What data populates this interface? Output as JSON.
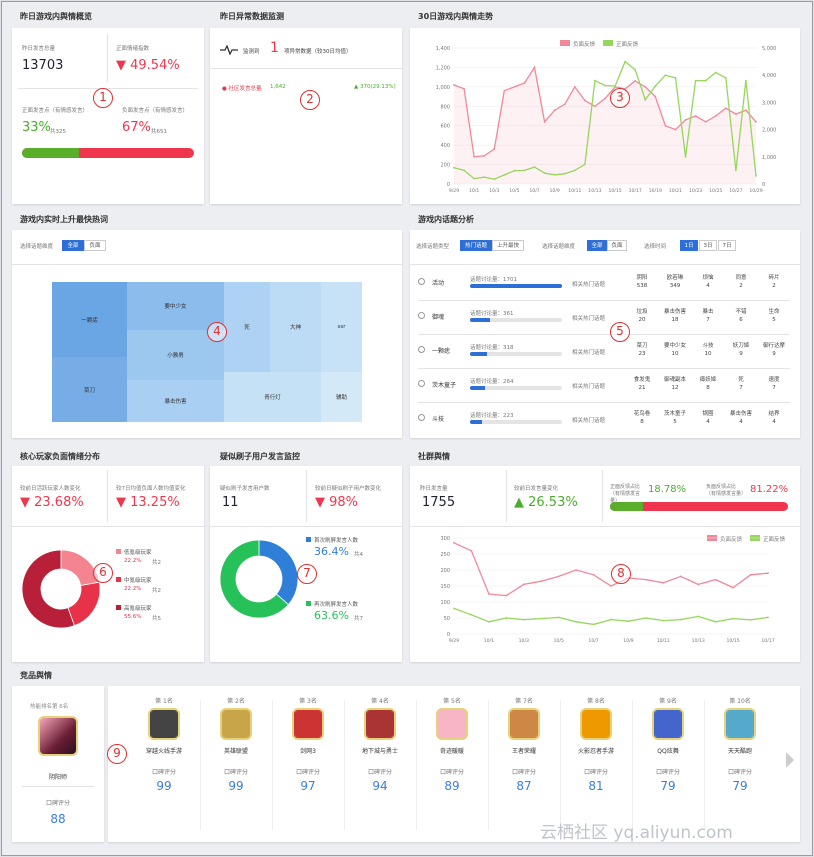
{
  "sections": {
    "overview": "昨日游戏内舆情概览",
    "anomaly": "昨日异常数据监测",
    "trend": "30日游戏内舆情走势",
    "hot": "游戏内实时上升最快热词",
    "topics": "游戏内话题分析",
    "core": "核心玩家负面情绪分布",
    "brush": "疑似刷子用户发言监控",
    "community": "社群舆情",
    "competitor": "竞品舆情"
  },
  "overview": {
    "total_label": "昨日发言总量",
    "total": "13703",
    "sentiment_label": "正面情绪指数",
    "sentiment": "▼ 49.54%",
    "pos_label": "正面发言点（有情感发言）",
    "pos_pct": "33%",
    "pos_count": "共325",
    "neg_label": "负面发言点（有情感发言）",
    "neg_pct": "67%",
    "neg_count": "共651",
    "pos_share": 0.33
  },
  "anomaly": {
    "detect_prefix": "监测到",
    "detect_count": "1",
    "detect_suffix": "项异常数据（较30日均值）",
    "item_label": "● 社区发言总量",
    "item_value": "1,642",
    "item_change": "▲ 370(29.13%)"
  },
  "trend": {
    "legend_neg": "负面反馈",
    "legend_pos": "正面反馈",
    "colors": {
      "neg": "#f1889a",
      "pos": "#96d65c"
    }
  },
  "chart_data": [
    {
      "type": "line",
      "title": "30日游戏内舆情走势",
      "x": [
        "9/29",
        "9/30",
        "10/1",
        "10/2",
        "10/3",
        "10/4",
        "10/5",
        "10/6",
        "10/7",
        "10/8",
        "10/9",
        "10/10",
        "10/11",
        "10/12",
        "10/13",
        "10/14",
        "10/15",
        "10/16",
        "10/17",
        "10/18",
        "10/19",
        "10/20",
        "10/21",
        "10/22",
        "10/23",
        "10/24",
        "10/25",
        "10/26",
        "10/27",
        "10/28",
        "10/29"
      ],
      "xticks": [
        "9/29",
        "10/1",
        "10/3",
        "10/5",
        "10/7",
        "10/9",
        "10/11",
        "10/13",
        "10/15",
        "10/17",
        "10/19",
        "10/21",
        "10/23",
        "10/25",
        "10/27",
        "10/29"
      ],
      "ylim_left": [
        0,
        1400
      ],
      "yticks_left": [
        "0",
        "200",
        "400",
        "600",
        "800",
        "1,000",
        "1,200",
        "1,400"
      ],
      "ylim_right": [
        0,
        5000
      ],
      "yticks_right": [
        "0",
        "1,000",
        "2,000",
        "3,000",
        "4,000",
        "5,000"
      ],
      "series": [
        {
          "name": "负面反馈",
          "axis": "left",
          "values": [
            1020,
            980,
            280,
            290,
            360,
            960,
            1000,
            1040,
            1200,
            640,
            760,
            820,
            1000,
            860,
            800,
            880,
            1000,
            980,
            1060,
            1000,
            900,
            600,
            560,
            660,
            700,
            640,
            700,
            780,
            720,
            760,
            640
          ]
        },
        {
          "name": "正面反馈",
          "axis": "right",
          "values": [
            600,
            500,
            200,
            250,
            180,
            330,
            490,
            500,
            620,
            400,
            340,
            380,
            500,
            720,
            3800,
            3620,
            3600,
            4500,
            4200,
            3100,
            3600,
            4000,
            3900,
            1000,
            3800,
            3800,
            4100,
            3900,
            500,
            3800,
            300
          ]
        }
      ]
    },
    {
      "type": "line",
      "title": "社群舆情",
      "x": [
        "9/29",
        "9/30",
        "10/1",
        "10/2",
        "10/3",
        "10/4",
        "10/5",
        "10/6",
        "10/7",
        "10/8",
        "10/9",
        "10/10",
        "10/11",
        "10/12",
        "10/13",
        "10/14",
        "10/15",
        "10/16",
        "10/17"
      ],
      "xticks": [
        "9/29",
        "10/1",
        "10/3",
        "10/5",
        "10/7",
        "10/9",
        "10/11",
        "10/13",
        "10/15",
        "10/17"
      ],
      "ylim": [
        0,
        300
      ],
      "yticks": [
        "0",
        "50",
        "100",
        "150",
        "200",
        "250",
        "300"
      ],
      "series": [
        {
          "name": "负面反馈",
          "values": [
            285,
            260,
            125,
            120,
            155,
            165,
            180,
            200,
            185,
            150,
            175,
            170,
            160,
            180,
            155,
            170,
            145,
            185,
            190
          ]
        },
        {
          "name": "正面反馈",
          "values": [
            80,
            60,
            38,
            50,
            45,
            48,
            52,
            38,
            30,
            45,
            40,
            50,
            42,
            45,
            55,
            38,
            48,
            44,
            52
          ]
        }
      ]
    }
  ],
  "hot": {
    "filter_label": "选择话题维度",
    "btn_all": "全部",
    "btn_neg": "负面",
    "words": [
      "一颗痣",
      "菜刀",
      "要中少女",
      "小雅男",
      "暴击伤害",
      "死",
      "青行灯",
      "大神",
      "ssr",
      "辅助"
    ]
  },
  "topics": {
    "type_label": "选择话题类型",
    "btn_hot": "热门话题",
    "btn_rise": "上升最快",
    "dim_label": "选择话题维度",
    "btn_all": "全部",
    "btn_neg": "负面",
    "time_label": "选择时间",
    "btn_1d": "1日",
    "btn_3d": "3日",
    "btn_7d": "7日",
    "related_label": "相关热门话题",
    "rows": [
      {
        "name": "活动",
        "count": "话题讨论量：1701",
        "fill": 1.0,
        "items": [
          {
            "w": "阴阳",
            "n": "538"
          },
          {
            "w": "欧若琳",
            "n": "349"
          },
          {
            "w": "烦恼",
            "n": "4"
          },
          {
            "w": "同意",
            "n": "2"
          },
          {
            "w": "碎片",
            "n": "2"
          }
        ]
      },
      {
        "name": "御魂",
        "count": "话题讨论量：361",
        "fill": 0.22,
        "items": [
          {
            "w": "垃圾",
            "n": "20"
          },
          {
            "w": "暴击伤害",
            "n": "18"
          },
          {
            "w": "暴击",
            "n": "7"
          },
          {
            "w": "不错",
            "n": "6"
          },
          {
            "w": "生命",
            "n": "5"
          }
        ]
      },
      {
        "name": "一颗痣",
        "count": "话题讨论量：318",
        "fill": 0.19,
        "items": [
          {
            "w": "菜刀",
            "n": "23"
          },
          {
            "w": "要中少女",
            "n": "10"
          },
          {
            "w": "斗技",
            "n": "10"
          },
          {
            "w": "妖刀姬",
            "n": "9"
          },
          {
            "w": "御行达摩",
            "n": "9"
          }
        ]
      },
      {
        "name": "茨木童子",
        "count": "话题讨论量：264",
        "fill": 0.16,
        "items": [
          {
            "w": "食发鬼",
            "n": "21"
          },
          {
            "w": "御魂副本",
            "n": "12"
          },
          {
            "w": "瘴妖姬",
            "n": "8"
          },
          {
            "w": "死",
            "n": "7"
          },
          {
            "w": "速度",
            "n": "7"
          }
        ]
      },
      {
        "name": "斗技",
        "count": "话题讨论量：223",
        "fill": 0.13,
        "items": [
          {
            "w": "花鸟卷",
            "n": "8"
          },
          {
            "w": "茨木童子",
            "n": "5"
          },
          {
            "w": "锅圈",
            "n": "4"
          },
          {
            "w": "暴击伤害",
            "n": "4"
          },
          {
            "w": "结界",
            "n": "4"
          }
        ]
      }
    ]
  },
  "core": {
    "l1": "较前日活跃玩家人数变化",
    "v1": "▼ 23.68%",
    "l2": "较7日均值负面人数均值变化",
    "v2": "▼ 13.25%",
    "legend": [
      {
        "name": "低氪级玩家",
        "pct": "22.2%",
        "n": "共2",
        "color": "#f4848f"
      },
      {
        "name": "中氪级玩家",
        "pct": "22.2%",
        "n": "共2",
        "color": "#e8324a"
      },
      {
        "name": "高氪级玩家",
        "pct": "55.6%",
        "n": "共5",
        "color": "#b8203a"
      }
    ]
  },
  "brush": {
    "l1": "疑似刷子发言用户数",
    "v1": "11",
    "l2": "较前日疑似刷子用户数变化",
    "v2": "▼ 98%",
    "legend": [
      {
        "name": "首次刷屏发言人数",
        "pct": "36.4%",
        "n": "共4",
        "color": "#2f7fd8"
      },
      {
        "name": "再次刷屏发言人数",
        "pct": "63.6%",
        "n": "共7",
        "color": "#27c15a"
      }
    ]
  },
  "community": {
    "l1": "昨日发言量",
    "v1": "1755",
    "l2": "较前日发言量变化",
    "v2": "▲ 26.53%",
    "pos_label": "正面反馈占比（有情感发言量）",
    "pos": "18.78%",
    "neg_label": "负面反馈占比（有情感发言量）",
    "neg": "81.22%",
    "legend_neg": "负面反馈",
    "legend_pos": "正面反馈",
    "pos_share": 0.1878
  },
  "competitor": {
    "self_rank": "热能排名第 6名",
    "self_name": "阴阳师",
    "score_label": "口碑评分",
    "self_score": "88",
    "items": [
      {
        "rank": "第 1名",
        "name": "穿越火线手游",
        "score": "99"
      },
      {
        "rank": "第 2名",
        "name": "英雄联盟",
        "score": "99"
      },
      {
        "rank": "第 3名",
        "name": "剑网3",
        "score": "97"
      },
      {
        "rank": "第 4名",
        "name": "地下城与勇士",
        "score": "94"
      },
      {
        "rank": "第 5名",
        "name": "奇迹暖暖",
        "score": "89"
      },
      {
        "rank": "第 7名",
        "name": "王者荣耀",
        "score": "87"
      },
      {
        "rank": "第 8名",
        "name": "火影忍者手游",
        "score": "81"
      },
      {
        "rank": "第 9名",
        "name": "QQ炫舞",
        "score": "79"
      },
      {
        "rank": "第 10名",
        "name": "天天酷跑",
        "score": "79"
      }
    ]
  },
  "markers": [
    "1",
    "2",
    "3",
    "4",
    "5",
    "6",
    "7",
    "8",
    "9"
  ],
  "watermark": "云栖社区 yq.aliyun.com"
}
